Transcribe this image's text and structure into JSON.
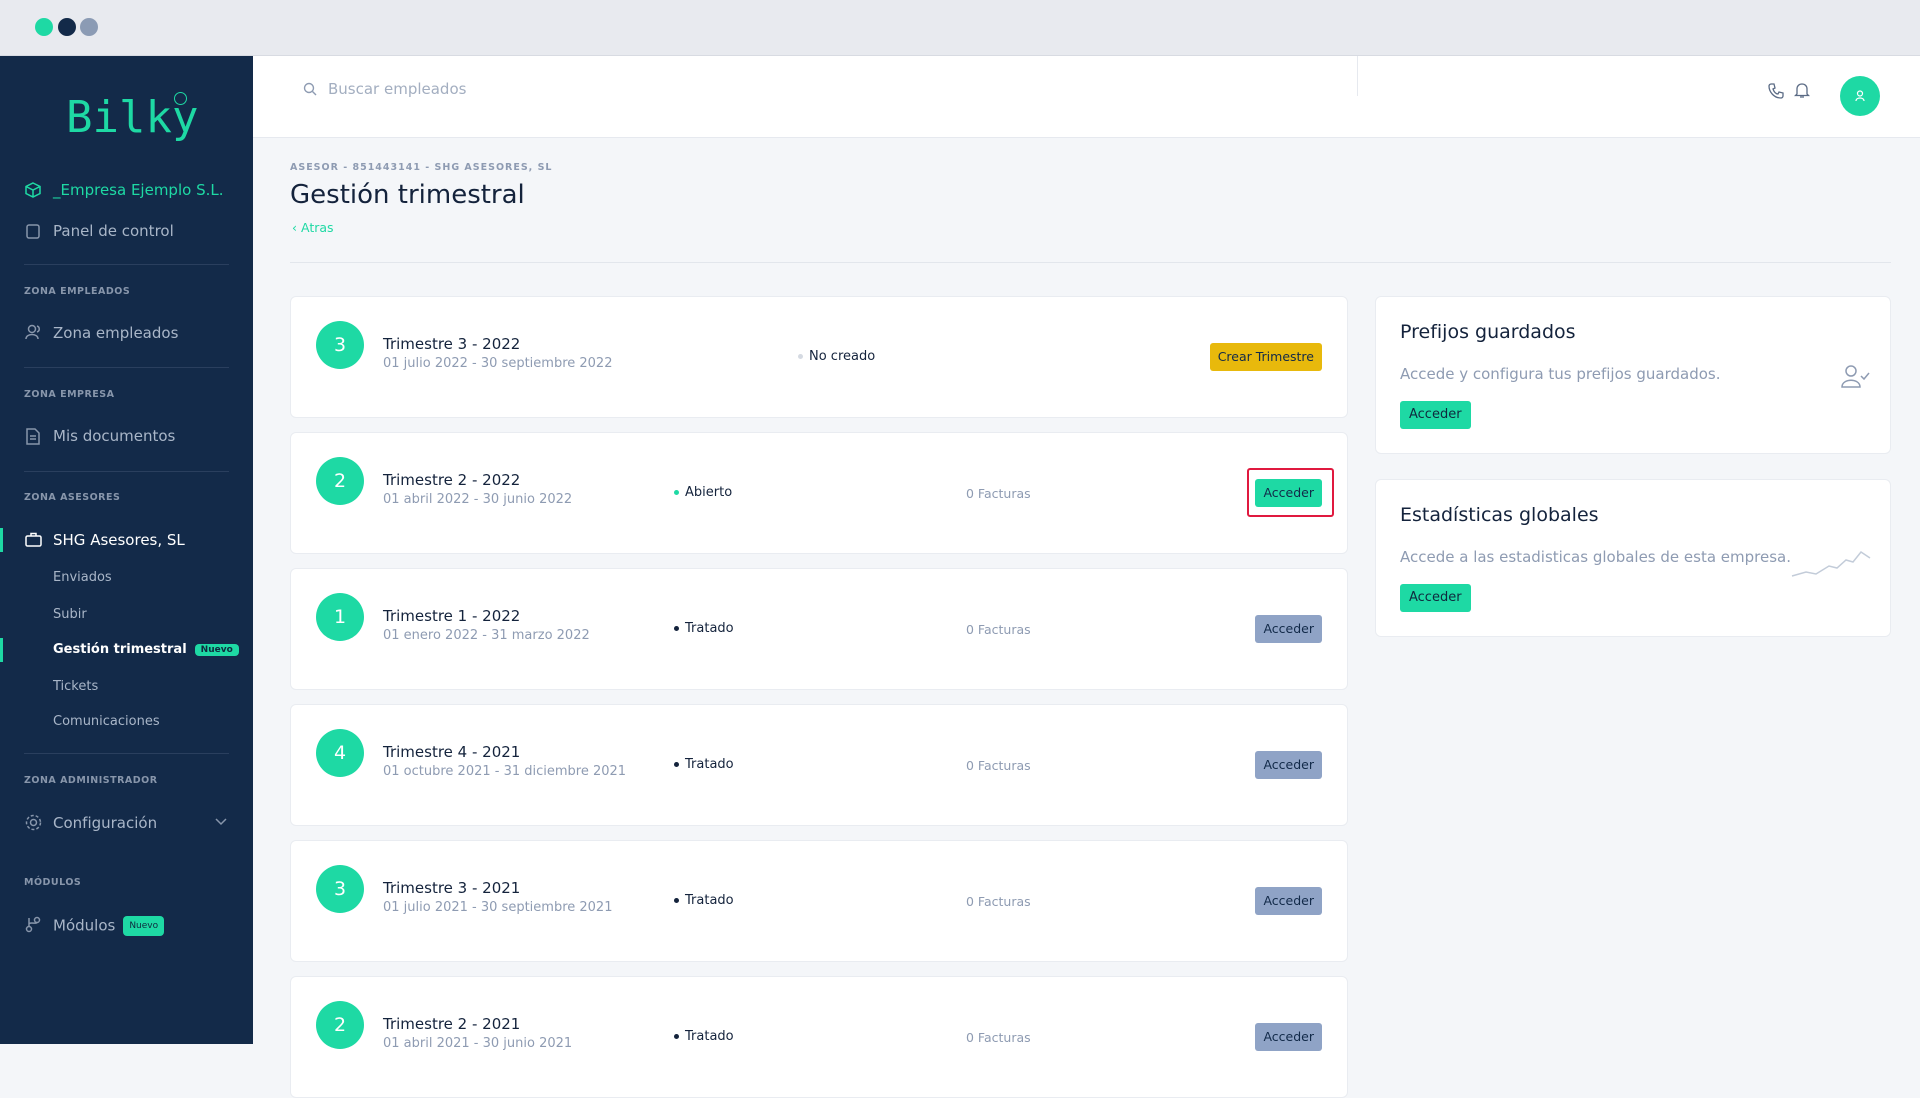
{
  "sidebar": {
    "logo": "Bilky",
    "company": "_Empresa Ejemplo S.L.",
    "panel": "Panel de control",
    "groups": [
      {
        "heading": "ZONA EMPLEADOS",
        "items": [
          "Zona empleados"
        ]
      },
      {
        "heading": "ZONA EMPRESA",
        "items": [
          "Mis documentos"
        ]
      },
      {
        "heading": "ZONA ASESORES",
        "items": [
          "SHG Asesores, SL"
        ],
        "subitems": [
          "Enviados",
          "Subir",
          "Gestión trimestral",
          "Tickets",
          "Comunicaciones"
        ],
        "badge": "Nuevo"
      },
      {
        "heading": "ZONA ADMINISTRADOR",
        "items": [
          "Configuración"
        ]
      },
      {
        "heading": "MÓDULOS",
        "items": [
          "Módulos"
        ],
        "badge": "Nuevo"
      }
    ]
  },
  "header": {
    "search_placeholder": "Buscar empleados"
  },
  "page": {
    "breadcrumb": "ASESOR - 851443141 - SHG ASESORES, SL",
    "title": "Gestión trimestral",
    "back": "Atras"
  },
  "quarters": [
    {
      "number": 3,
      "title": "Trimestre 3 - 2022",
      "dates": "01 julio 2022 - 30 septiembre 2022",
      "status": "No creado",
      "button": "Crear Trimestre"
    },
    {
      "number": 2,
      "title": "Trimestre 2 - 2022",
      "dates": "01 abril 2022 - 30 junio 2022",
      "status": "Abierto",
      "invoices": "0 Facturas",
      "button": "Acceder"
    },
    {
      "number": 1,
      "title": "Trimestre 1 - 2022",
      "dates": "01 enero 2022 - 31 marzo 2022",
      "status": "Tratado",
      "invoices": "0 Facturas",
      "button": "Acceder"
    },
    {
      "number": 4,
      "title": "Trimestre 4 - 2021",
      "dates": "01 octubre 2021 - 31 diciembre 2021",
      "status": "Tratado",
      "invoices": "0 Facturas",
      "button": "Acceder"
    },
    {
      "number": 3,
      "title": "Trimestre 3 - 2021",
      "dates": "01 julio 2021 - 30 septiembre 2021",
      "status": "Tratado",
      "invoices": "0 Facturas",
      "button": "Acceder"
    },
    {
      "number": 2,
      "title": "Trimestre 2 - 2021",
      "dates": "01 abril 2021 - 30 junio 2021",
      "status": "Tratado",
      "invoices": "0 Facturas",
      "button": "Acceder"
    }
  ],
  "cards": [
    {
      "title": "Prefijos guardados",
      "description": "Accede y configura tus prefijos guardados.",
      "button": "Acceder"
    },
    {
      "title": "Estadísticas globales",
      "description": "Accede a las estadisticas globales de esta empresa.",
      "button": "Acceder"
    }
  ]
}
